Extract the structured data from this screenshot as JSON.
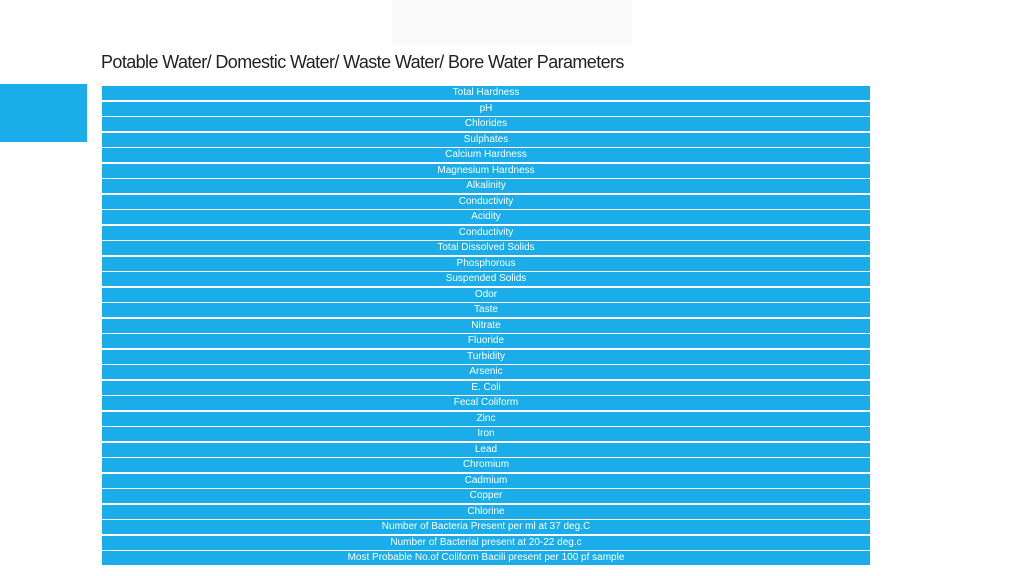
{
  "slide": {
    "title": "Potable Water/ Domestic Water/ Waste Water/ Bore Water Parameters"
  },
  "colors": {
    "accent": "#1badea",
    "row_text": "#ffffff",
    "title_text": "#222222"
  },
  "parameters": [
    "Total Hardness",
    "pH",
    "Chlorides",
    "Sulphates",
    "Calcium Hardness",
    "Magnesium Hardness",
    "Alkalinity",
    "Conductivity",
    "Acidity",
    "Conductivity",
    "Total Dissolved Solids",
    "Phosphorous",
    "Suspended Solids",
    "Odor",
    "Taste",
    "Nitrate",
    "Fluoride",
    "Turbidity",
    "Arsenic",
    "E. Coli",
    "Fecal Coliform",
    "Zinc",
    "Iron",
    "Lead",
    "Chromium",
    "Cadmium",
    "Copper",
    "Chlorine",
    "Number of Bacteria Present per ml at 37 deg.C",
    "Number of Bacterial present at 20-22 deg.c",
    "Most Probable No.of Coliform Bacili present per 100 pf sample"
  ]
}
